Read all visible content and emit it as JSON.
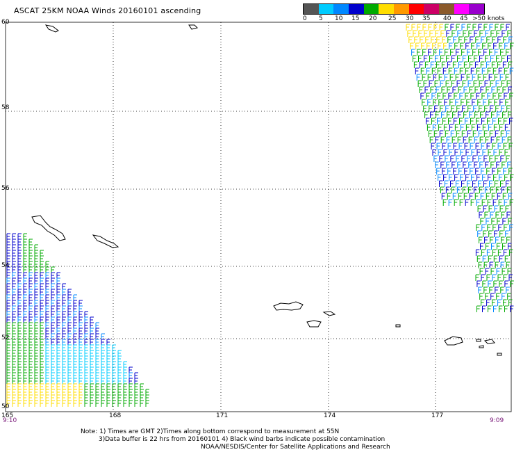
{
  "title": "ASCAT 25KM NOAA Winds 20160101 ascending",
  "scale": {
    "labels": [
      "0",
      "5",
      "10",
      "15",
      "20",
      "25",
      "30",
      "35",
      "40",
      "45",
      ">50 knots"
    ],
    "colors": [
      "#555555",
      "#00ccff",
      "#0088ff",
      "#0000cc",
      "#00aa00",
      "#ffdd00",
      "#ff9900",
      "#ff0000",
      "#cc0066",
      "#8b5a2b",
      "#ff00ff",
      "#9900cc"
    ]
  },
  "lat_labels": [
    "60",
    "58",
    "56",
    "54",
    "52",
    "50"
  ],
  "lon_labels": [
    "165",
    "168",
    "171",
    "174",
    "177"
  ],
  "time_left": "9:10",
  "time_right": "9:09",
  "notes": {
    "line1": "Note: 1) Times are GMT 2)Times along bottom correspond to measurement at 55N",
    "line2": "3)Data buffer is 22 hrs from 20160101 4) Black wind barbs indicate possible contamination",
    "line3": "NOAA/NESDIS/Center for Satellite Applications and Research"
  }
}
